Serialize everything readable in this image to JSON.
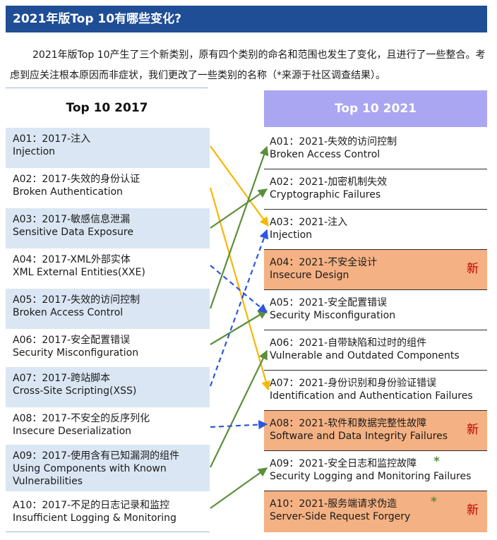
{
  "header": {
    "title": "2021年版Top 10有哪些变化?"
  },
  "intro": "2021年版Top 10产生了三个新类别，原有四个类别的命名和范围也发生了变化，且进行了一些整合。考虑到应关注根本原因而非症状，我们更改了一些类别的名称（*来源于社区调查结果）。",
  "left_column": {
    "heading": "Top 10 2017",
    "items": [
      {
        "cn": "A01：2017-注入",
        "en": "Injection"
      },
      {
        "cn": "A02：2017-失效的身份认证",
        "en": "Broken Authentication"
      },
      {
        "cn": "A03：2017-敏感信息泄漏",
        "en": "Sensitive Data Exposure"
      },
      {
        "cn": "A04：2017-XML外部实体",
        "en": "XML External Entities(XXE)"
      },
      {
        "cn": "A05：2017-失效的访问控制",
        "en": "Broken Access Control"
      },
      {
        "cn": "A06：2017-安全配置错误",
        "en": "Security Misconfiguration"
      },
      {
        "cn": "A07：2017-跨站脚本",
        "en": "Cross-Site Scripting(XSS)"
      },
      {
        "cn": "A08：2017-不安全的反序列化",
        "en": "Insecure Deserialization"
      },
      {
        "cn": "A09：2017-使用含有已知漏洞的组件",
        "en": "Using Components with Known",
        "en2": "Vulnerabilities"
      },
      {
        "cn": "A10：2017-不足的日志记录和监控",
        "en": "Insufficient Logging & Monitoring"
      }
    ]
  },
  "right_column": {
    "heading": "Top 10 2021",
    "new_label": "新",
    "star_label": "*",
    "items": [
      {
        "cn": "A01：2021-失效的访问控制",
        "en": "Broken Access Control"
      },
      {
        "cn": "A02：2021-加密机制失效",
        "en": "Cryptographic Failures"
      },
      {
        "cn": "A03：2021-注入",
        "en": "Injection"
      },
      {
        "cn": "A04：2021-不安全设计",
        "en": "Insecure Design"
      },
      {
        "cn": "A05：2021-安全配置错误",
        "en": "Security Misconfiguration"
      },
      {
        "cn": "A06：2021-自带缺陷和过时的组件",
        "en": "Vulnerable and Outdated Components"
      },
      {
        "cn": "A07：2021-身份识别和身份验证错误",
        "en": "Identification and Authentication Failures"
      },
      {
        "cn": "A08：2021-软件和数据完整性故障",
        "en": "Software and Data Integrity Failures"
      },
      {
        "cn": "A09：2021-安全日志和监控故障",
        "en": "Security Logging and Monitoring Failures"
      },
      {
        "cn": "A10：2021-服务端请求伪造",
        "en": "Server-Side Request Forgery"
      }
    ]
  },
  "mapping_colors": {
    "renamed": "#f5b800",
    "moved": "#5a8f3b",
    "merged": "#2f56e0"
  }
}
